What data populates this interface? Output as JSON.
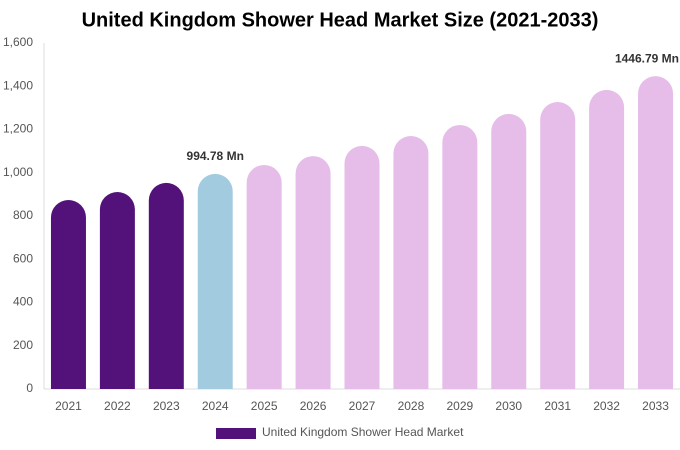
{
  "chart_data": {
    "type": "bar",
    "title": "United Kingdom Shower Head Market Size (2021-2033)",
    "categories": [
      "2021",
      "2022",
      "2023",
      "2024",
      "2025",
      "2026",
      "2027",
      "2028",
      "2029",
      "2030",
      "2031",
      "2032",
      "2033"
    ],
    "series": [
      {
        "name": "United Kingdom Shower Head Market",
        "color": "#52127a",
        "values": [
          874,
          911,
          953,
          994.78,
          1036,
          1077,
          1124,
          1170,
          1221,
          1272,
          1327,
          1383,
          1446.79
        ],
        "value_labels": [
          null,
          null,
          null,
          "994.78 Mn",
          null,
          null,
          null,
          null,
          null,
          null,
          null,
          null,
          "1446.79 Mn"
        ],
        "colors": [
          "#52127a",
          "#52127a",
          "#52127a",
          "#a3cbe0",
          "#e6bde9",
          "#e6bde9",
          "#e6bde9",
          "#e6bde9",
          "#e6bde9",
          "#e6bde9",
          "#e6bde9",
          "#e6bde9",
          "#e6bde9"
        ]
      }
    ],
    "ylim": [
      0,
      1600
    ],
    "yticks": [
      0,
      200,
      400,
      600,
      800,
      {
        "value": 1000,
        "label": "1,000"
      },
      {
        "value": 1200,
        "label": "1,200"
      },
      {
        "value": 1400,
        "label": "1,400"
      },
      {
        "value": 1600,
        "label": "1,600"
      }
    ],
    "grid": false
  }
}
